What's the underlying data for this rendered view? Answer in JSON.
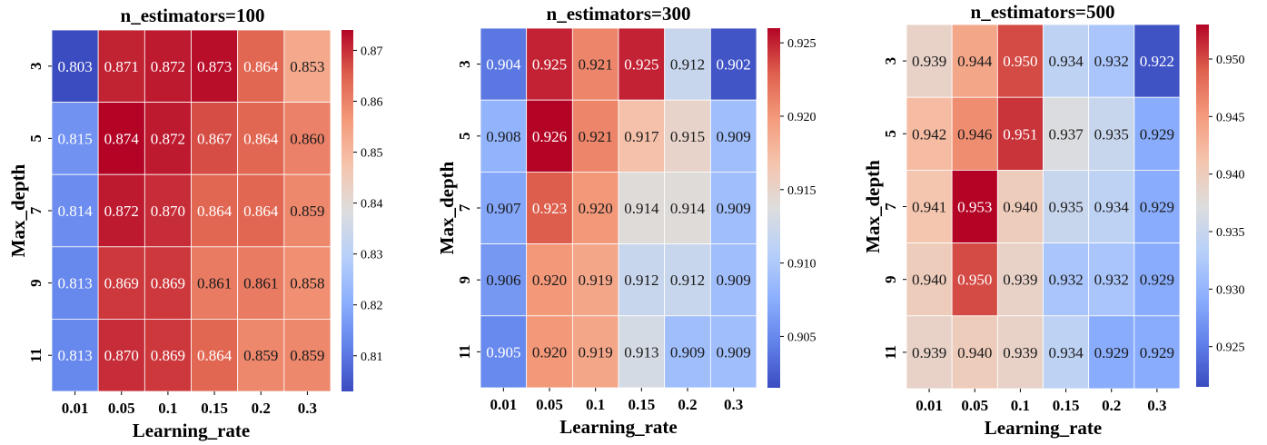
{
  "chart_data": [
    {
      "type": "heatmap",
      "title": "n_estimators=100",
      "xlabel": "Learning_rate",
      "ylabel": "Max_depth",
      "x_categories": [
        "0.01",
        "0.05",
        "0.1",
        "0.15",
        "0.2",
        "0.3"
      ],
      "y_categories": [
        "3",
        "5",
        "7",
        "9",
        "11"
      ],
      "values": [
        [
          0.803,
          0.871,
          0.872,
          0.873,
          0.864,
          0.853
        ],
        [
          0.815,
          0.874,
          0.872,
          0.867,
          0.864,
          0.86
        ],
        [
          0.814,
          0.872,
          0.87,
          0.864,
          0.864,
          0.859
        ],
        [
          0.813,
          0.869,
          0.869,
          0.861,
          0.861,
          0.858
        ],
        [
          0.813,
          0.87,
          0.869,
          0.864,
          0.859,
          0.859
        ]
      ],
      "cell_labels": [
        [
          "0.803",
          "0.871",
          "0.872",
          "0.873",
          "0.864",
          "0.853"
        ],
        [
          "0.815",
          "0.874",
          "0.872",
          "0.867",
          "0.864",
          "0.860"
        ],
        [
          "0.814",
          "0.872",
          "0.870",
          "0.864",
          "0.864",
          "0.859"
        ],
        [
          "0.813",
          "0.869",
          "0.869",
          "0.861",
          "0.861",
          "0.858"
        ],
        [
          "0.813",
          "0.870",
          "0.869",
          "0.864",
          "0.859",
          "0.859"
        ]
      ],
      "colorbar": {
        "vmin": 0.803,
        "vmax": 0.874,
        "ticks": [
          0.81,
          0.82,
          0.83,
          0.84,
          0.85,
          0.86,
          0.87
        ],
        "tick_labels": [
          "0.81",
          "0.82",
          "0.83",
          "0.84",
          "0.85",
          "0.86",
          "0.87"
        ]
      },
      "colormap": "coolwarm",
      "grid": true
    },
    {
      "type": "heatmap",
      "title": "n_estimators=300",
      "xlabel": "Learning_rate",
      "ylabel": "Max_depth",
      "x_categories": [
        "0.01",
        "0.05",
        "0.1",
        "0.15",
        "0.2",
        "0.3"
      ],
      "y_categories": [
        "3",
        "5",
        "7",
        "9",
        "11"
      ],
      "values": [
        [
          0.904,
          0.925,
          0.921,
          0.925,
          0.912,
          0.902
        ],
        [
          0.908,
          0.926,
          0.921,
          0.917,
          0.915,
          0.909
        ],
        [
          0.907,
          0.923,
          0.92,
          0.914,
          0.914,
          0.909
        ],
        [
          0.906,
          0.92,
          0.919,
          0.912,
          0.912,
          0.909
        ],
        [
          0.905,
          0.92,
          0.919,
          0.913,
          0.909,
          0.909
        ]
      ],
      "cell_labels": [
        [
          "0.904",
          "0.925",
          "0.921",
          "0.925",
          "0.912",
          "0.902"
        ],
        [
          "0.908",
          "0.926",
          "0.921",
          "0.917",
          "0.915",
          "0.909"
        ],
        [
          "0.907",
          "0.923",
          "0.920",
          "0.914",
          "0.914",
          "0.909"
        ],
        [
          "0.906",
          "0.920",
          "0.919",
          "0.912",
          "0.912",
          "0.909"
        ],
        [
          "0.905",
          "0.920",
          "0.919",
          "0.913",
          "0.909",
          "0.909"
        ]
      ],
      "colorbar": {
        "vmin": 0.9015,
        "vmax": 0.926,
        "ticks": [
          0.905,
          0.91,
          0.915,
          0.92,
          0.925
        ],
        "tick_labels": [
          "0.905",
          "0.910",
          "0.915",
          "0.920",
          "0.925"
        ]
      },
      "colormap": "coolwarm",
      "grid": true
    },
    {
      "type": "heatmap",
      "title": "n_estimators=500",
      "xlabel": "Learning_rate",
      "ylabel": "Max_depth",
      "x_categories": [
        "0.01",
        "0.05",
        "0.1",
        "0.15",
        "0.2",
        "0.3"
      ],
      "y_categories": [
        "3",
        "5",
        "7",
        "9",
        "11"
      ],
      "values": [
        [
          0.939,
          0.944,
          0.95,
          0.934,
          0.932,
          0.922
        ],
        [
          0.942,
          0.946,
          0.951,
          0.937,
          0.935,
          0.929
        ],
        [
          0.941,
          0.953,
          0.94,
          0.935,
          0.934,
          0.929
        ],
        [
          0.94,
          0.95,
          0.939,
          0.932,
          0.932,
          0.929
        ],
        [
          0.939,
          0.94,
          0.939,
          0.934,
          0.929,
          0.929
        ]
      ],
      "cell_labels": [
        [
          "0.939",
          "0.944",
          "0.950",
          "0.934",
          "0.932",
          "0.922"
        ],
        [
          "0.942",
          "0.946",
          "0.951",
          "0.937",
          "0.935",
          "0.929"
        ],
        [
          "0.941",
          "0.953",
          "0.940",
          "0.935",
          "0.934",
          "0.929"
        ],
        [
          "0.940",
          "0.950",
          "0.939",
          "0.932",
          "0.932",
          "0.929"
        ],
        [
          "0.939",
          "0.940",
          "0.939",
          "0.934",
          "0.929",
          "0.929"
        ]
      ],
      "colorbar": {
        "vmin": 0.9215,
        "vmax": 0.953,
        "ticks": [
          0.925,
          0.93,
          0.935,
          0.94,
          0.945,
          0.95
        ],
        "tick_labels": [
          "0.925",
          "0.930",
          "0.935",
          "0.940",
          "0.945",
          "0.950"
        ]
      },
      "colormap": "coolwarm",
      "grid": true
    }
  ]
}
